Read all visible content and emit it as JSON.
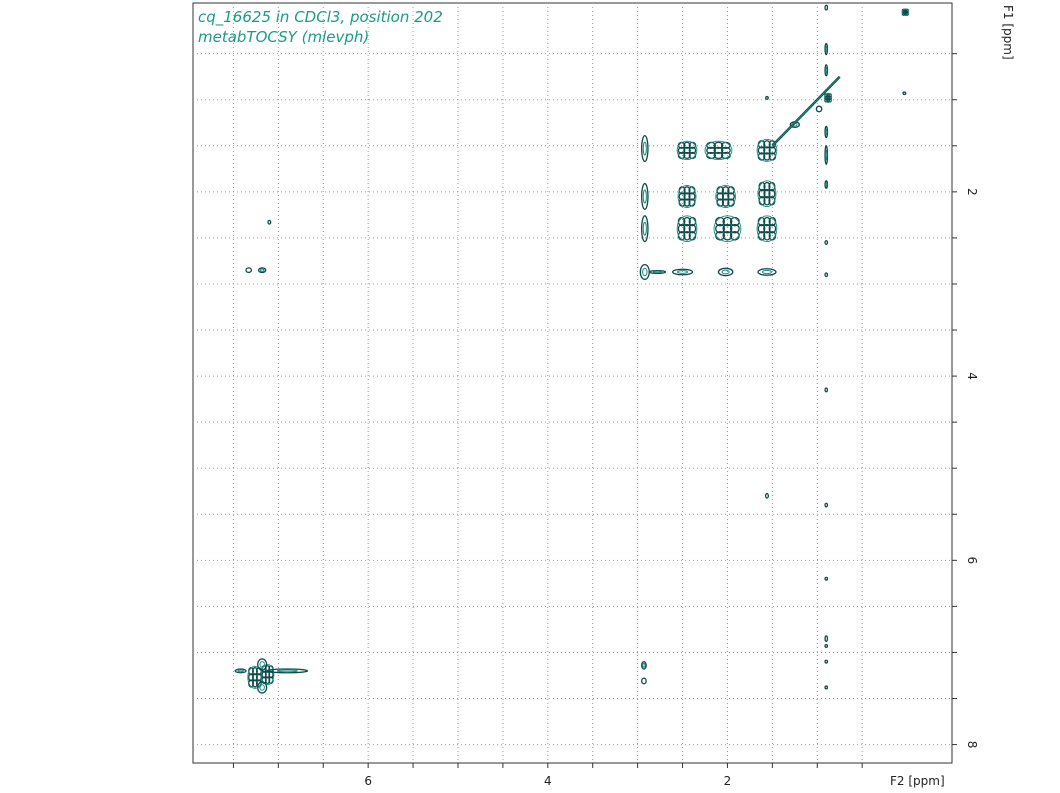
{
  "chart_data": {
    "type": "contour",
    "title": "cq_16625 in CDCl3, position 202",
    "subtitle": "metabTOCSY (mlevph)",
    "xlabel": "F2 [ppm]",
    "ylabel": "F1 [ppm]",
    "xlim": [
      7.95,
      -0.5
    ],
    "ylim": [
      -0.05,
      8.2
    ],
    "x_tick_labels": [
      "6",
      "4",
      "2"
    ],
    "y_tick_labels": [
      "2",
      "4",
      "6",
      "8"
    ],
    "x_ticks": [
      6,
      4,
      2
    ],
    "y_ticks": [
      2,
      4,
      6,
      8
    ],
    "x_minor_ticks": [
      7.5,
      7,
      6.5,
      6,
      5.5,
      5,
      4.5,
      4,
      3.5,
      3,
      2.5,
      2,
      1.5,
      1,
      0.5
    ],
    "y_minor_ticks": [
      0.5,
      1,
      1.5,
      2,
      2.5,
      3,
      3.5,
      4,
      4.5,
      5,
      5.5,
      6,
      6.5,
      7,
      7.5,
      8
    ],
    "grid": true,
    "contour_color": "#0d4a4a",
    "peak_color": "#1a8a80",
    "peaks": [
      {
        "x": 7.26,
        "y": 7.27,
        "w": 0.16,
        "h": 0.24,
        "cluster": true
      },
      {
        "x": 7.12,
        "y": 7.24,
        "w": 0.14,
        "h": 0.22,
        "cluster": true
      },
      {
        "x": 7.18,
        "y": 7.38,
        "w": 0.1,
        "h": 0.12,
        "cluster": false
      },
      {
        "x": 7.18,
        "y": 7.13,
        "w": 0.1,
        "h": 0.12,
        "cluster": false
      },
      {
        "x": 6.9,
        "y": 7.2,
        "w": 0.45,
        "h": 0.04,
        "cluster": false
      },
      {
        "x": 7.42,
        "y": 7.2,
        "w": 0.12,
        "h": 0.04,
        "cluster": false
      },
      {
        "x": 7.18,
        "y": 2.85,
        "w": 0.08,
        "h": 0.05,
        "cluster": false
      },
      {
        "x": 7.33,
        "y": 2.85,
        "w": 0.06,
        "h": 0.05,
        "cluster": false
      },
      {
        "x": 7.1,
        "y": 2.33,
        "w": 0.03,
        "h": 0.04,
        "cluster": false
      },
      {
        "x": 2.92,
        "y": 1.53,
        "w": 0.07,
        "h": 0.28,
        "cluster": false
      },
      {
        "x": 2.92,
        "y": 2.05,
        "w": 0.07,
        "h": 0.28,
        "cluster": false
      },
      {
        "x": 2.92,
        "y": 2.4,
        "w": 0.07,
        "h": 0.28,
        "cluster": false
      },
      {
        "x": 2.92,
        "y": 2.87,
        "w": 0.1,
        "h": 0.16,
        "cluster": false
      },
      {
        "x": 2.93,
        "y": 7.14,
        "w": 0.05,
        "h": 0.08,
        "cluster": false
      },
      {
        "x": 2.93,
        "y": 7.31,
        "w": 0.05,
        "h": 0.06,
        "cluster": false
      },
      {
        "x": 2.45,
        "y": 1.55,
        "w": 0.22,
        "h": 0.2,
        "cluster": true
      },
      {
        "x": 2.1,
        "y": 1.55,
        "w": 0.3,
        "h": 0.2,
        "cluster": true
      },
      {
        "x": 1.56,
        "y": 1.55,
        "w": 0.22,
        "h": 0.24,
        "cluster": true
      },
      {
        "x": 2.45,
        "y": 2.05,
        "w": 0.2,
        "h": 0.24,
        "cluster": true
      },
      {
        "x": 2.02,
        "y": 2.05,
        "w": 0.22,
        "h": 0.24,
        "cluster": true
      },
      {
        "x": 1.56,
        "y": 2.02,
        "w": 0.2,
        "h": 0.28,
        "cluster": true
      },
      {
        "x": 2.45,
        "y": 2.4,
        "w": 0.22,
        "h": 0.28,
        "cluster": true
      },
      {
        "x": 2.0,
        "y": 2.4,
        "w": 0.3,
        "h": 0.28,
        "cluster": true
      },
      {
        "x": 1.56,
        "y": 2.4,
        "w": 0.22,
        "h": 0.28,
        "cluster": true
      },
      {
        "x": 2.5,
        "y": 2.87,
        "w": 0.22,
        "h": 0.06,
        "cluster": false
      },
      {
        "x": 2.02,
        "y": 2.87,
        "w": 0.16,
        "h": 0.08,
        "cluster": false
      },
      {
        "x": 1.56,
        "y": 2.87,
        "w": 0.2,
        "h": 0.07,
        "cluster": false
      },
      {
        "x": 2.78,
        "y": 2.87,
        "w": 0.18,
        "h": 0.03,
        "cluster": false
      },
      {
        "x": 0.88,
        "y": 0.98,
        "w": 0.08,
        "h": 0.1,
        "cluster": true
      },
      {
        "x": 1.25,
        "y": 1.27,
        "w": 0.1,
        "h": 0.06,
        "cluster": false
      },
      {
        "x": 0.98,
        "y": 1.1,
        "w": 0.06,
        "h": 0.06,
        "cluster": false
      },
      {
        "x": 0.02,
        "y": 0.05,
        "w": 0.07,
        "h": 0.07,
        "cluster": true
      },
      {
        "x": 0.03,
        "y": 0.93,
        "w": 0.03,
        "h": 0.02,
        "cluster": false
      },
      {
        "x": 0.9,
        "y": 0.45,
        "w": 0.02,
        "h": 0.12,
        "cluster": false
      },
      {
        "x": 0.9,
        "y": 0.68,
        "w": 0.02,
        "h": 0.12,
        "cluster": false
      },
      {
        "x": 0.9,
        "y": 1.35,
        "w": 0.02,
        "h": 0.12,
        "cluster": false
      },
      {
        "x": 0.9,
        "y": 1.6,
        "w": 0.02,
        "h": 0.2,
        "cluster": false
      },
      {
        "x": 0.9,
        "y": 1.92,
        "w": 0.02,
        "h": 0.08,
        "cluster": false
      },
      {
        "x": 0.9,
        "y": 2.9,
        "w": 0.02,
        "h": 0.04,
        "cluster": false
      },
      {
        "x": 0.9,
        "y": 2.55,
        "w": 0.02,
        "h": 0.04,
        "cluster": false
      },
      {
        "x": 0.9,
        "y": 4.15,
        "w": 0.02,
        "h": 0.04,
        "cluster": false
      },
      {
        "x": 0.9,
        "y": 5.4,
        "w": 0.02,
        "h": 0.04,
        "cluster": false
      },
      {
        "x": 0.9,
        "y": 6.2,
        "w": 0.02,
        "h": 0.03,
        "cluster": false
      },
      {
        "x": 0.9,
        "y": 6.85,
        "w": 0.02,
        "h": 0.06,
        "cluster": false
      },
      {
        "x": 0.9,
        "y": 6.93,
        "w": 0.02,
        "h": 0.03,
        "cluster": false
      },
      {
        "x": 0.9,
        "y": 7.1,
        "w": 0.02,
        "h": 0.03,
        "cluster": false
      },
      {
        "x": 0.9,
        "y": 7.38,
        "w": 0.02,
        "h": 0.03,
        "cluster": false
      },
      {
        "x": 1.56,
        "y": 5.3,
        "w": 0.03,
        "h": 0.05,
        "cluster": false
      },
      {
        "x": 1.56,
        "y": 0.98,
        "w": 0.02,
        "h": 0.03,
        "cluster": false
      },
      {
        "x": 0.9,
        "y": 0.0,
        "w": 0.02,
        "h": 0.05,
        "cluster": false
      }
    ],
    "diagonal": [
      {
        "x1": 1.5,
        "y1": 1.5,
        "x2": 0.75,
        "y2": 0.75
      }
    ]
  }
}
